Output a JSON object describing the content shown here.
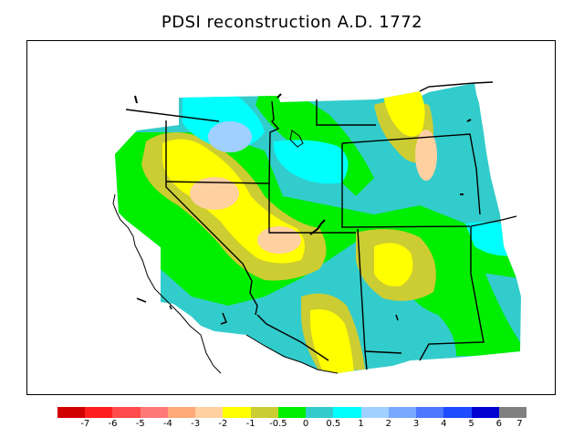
{
  "title": "PDSI reconstruction A.D. 1772",
  "colorbar": {
    "colors": [
      "#d10000",
      "#ff1e1e",
      "#ff4b4b",
      "#ff7878",
      "#ffa878",
      "#ffd0a0",
      "#ffff00",
      "#cccc33",
      "#00ee00",
      "#33cccc",
      "#00ffff",
      "#a0d0ff",
      "#78a8ff",
      "#4b78ff",
      "#1e4bff",
      "#0000d1",
      "#808080"
    ],
    "labels": [
      "-7",
      "-6",
      "-5",
      "-4",
      "-3",
      "-2",
      "-1",
      "-0.5",
      "0",
      "0.5",
      "1",
      "2",
      "3",
      "4",
      "5",
      "6",
      "7"
    ]
  },
  "legend_colors": {
    "dry_extreme": "#ffd0a0",
    "dry": "#ffff00",
    "slightly_dry": "#cccc33",
    "near_normal": "#00ee00",
    "slightly_wet": "#33cccc",
    "wet": "#00ffff",
    "wetter": "#a0d0ff"
  }
}
